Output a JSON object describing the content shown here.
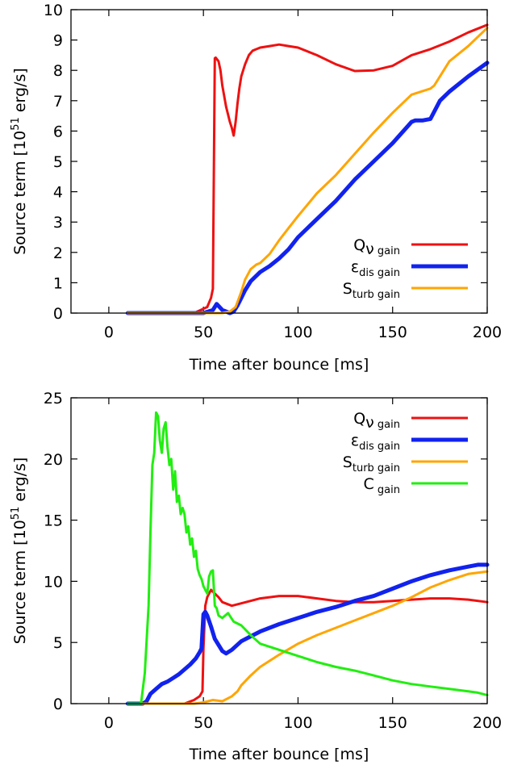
{
  "chart_data": [
    {
      "type": "line",
      "title": "",
      "xlabel": "Time after bounce [ms]",
      "ylabel_main": "Source term [10",
      "ylabel_sup": "51",
      "ylabel_tail": " erg/s]",
      "xlim": [
        -20,
        200
      ],
      "ylim": [
        0,
        10
      ],
      "xticks": [
        0,
        50,
        100,
        150,
        200
      ],
      "yticks": [
        0,
        1,
        2,
        3,
        4,
        5,
        6,
        7,
        8,
        9,
        10
      ],
      "grid": false,
      "legend_position": "bottom-right",
      "series": [
        {
          "name": "Q_ν gain",
          "legend_main": "Q",
          "legend_mid": "ν",
          "legend_sub": " gain",
          "color": "#ee1111",
          "width": 3,
          "x": [
            10,
            45,
            52,
            54,
            55,
            56,
            56.5,
            58,
            59,
            60,
            62,
            64,
            65,
            66,
            67,
            68,
            69,
            70,
            72,
            74,
            76,
            78,
            80,
            85,
            90,
            95,
            100,
            110,
            120,
            130,
            140,
            150,
            160,
            170,
            180,
            190,
            200
          ],
          "y": [
            0,
            0,
            0.2,
            0.5,
            0.8,
            8.4,
            8.42,
            8.3,
            8.0,
            7.5,
            6.8,
            6.3,
            6.1,
            5.85,
            6.3,
            6.9,
            7.4,
            7.8,
            8.2,
            8.5,
            8.65,
            8.7,
            8.75,
            8.8,
            8.85,
            8.8,
            8.75,
            8.5,
            8.2,
            7.98,
            8.0,
            8.15,
            8.5,
            8.7,
            8.95,
            9.25,
            9.5
          ]
        },
        {
          "name": "ε_dis gain",
          "legend_main": "ε",
          "legend_mid": "",
          "legend_sub": "dis gain",
          "color": "#1122ee",
          "width": 5,
          "x": [
            10,
            50,
            55,
            57,
            60,
            64,
            66,
            68,
            70,
            72,
            75,
            80,
            85,
            90,
            95,
            100,
            110,
            120,
            130,
            140,
            150,
            160,
            162,
            166,
            170,
            175,
            180,
            190,
            200
          ],
          "y": [
            0,
            0,
            0.1,
            0.3,
            0.1,
            0,
            0.05,
            0.25,
            0.5,
            0.75,
            1.05,
            1.35,
            1.55,
            1.8,
            2.1,
            2.5,
            3.1,
            3.7,
            4.4,
            5.0,
            5.6,
            6.3,
            6.35,
            6.35,
            6.4,
            7.0,
            7.3,
            7.8,
            8.25
          ]
        },
        {
          "name": "S_turb gain",
          "legend_main": "S",
          "legend_mid": "",
          "legend_sub": "turb gain",
          "color": "#ffa500",
          "width": 3,
          "x": [
            10,
            60,
            64,
            67,
            70,
            72,
            75,
            78,
            80,
            85,
            90,
            95,
            100,
            110,
            120,
            130,
            140,
            150,
            160,
            170,
            172,
            175,
            180,
            190,
            200
          ],
          "y": [
            0,
            0,
            0.05,
            0.2,
            0.7,
            1.1,
            1.45,
            1.6,
            1.65,
            1.95,
            2.4,
            2.8,
            3.2,
            3.95,
            4.55,
            5.25,
            5.95,
            6.6,
            7.2,
            7.4,
            7.5,
            7.8,
            8.3,
            8.8,
            9.4
          ]
        }
      ]
    },
    {
      "type": "line",
      "title": "",
      "xlabel": "Time after bounce [ms]",
      "ylabel_main": "Source term [10",
      "ylabel_sup": "51",
      "ylabel_tail": " erg/s]",
      "xlim": [
        -20,
        200
      ],
      "ylim": [
        0,
        25
      ],
      "xticks": [
        0,
        50,
        100,
        150,
        200
      ],
      "yticks": [
        0,
        5,
        10,
        15,
        20,
        25
      ],
      "grid": false,
      "legend_position": "top-right",
      "series": [
        {
          "name": "Q_ν gain",
          "legend_main": "Q",
          "legend_mid": "ν",
          "legend_sub": " gain",
          "color": "#ee1111",
          "width": 3,
          "x": [
            10,
            40,
            45,
            48,
            49.5,
            50,
            51,
            52,
            54,
            56,
            58,
            60,
            65,
            70,
            80,
            90,
            100,
            110,
            120,
            130,
            140,
            150,
            160,
            170,
            180,
            190,
            200
          ],
          "y": [
            0,
            0,
            0.3,
            0.6,
            1.0,
            4.5,
            8.0,
            8.7,
            9.3,
            9.0,
            8.7,
            8.3,
            8.0,
            8.2,
            8.6,
            8.8,
            8.8,
            8.6,
            8.4,
            8.3,
            8.3,
            8.4,
            8.5,
            8.6,
            8.6,
            8.5,
            8.3
          ]
        },
        {
          "name": "ε_dis gain",
          "legend_main": "ε",
          "legend_mid": "",
          "legend_sub": "dis gain",
          "color": "#1122ee",
          "width": 5,
          "x": [
            10,
            18,
            20,
            22,
            25,
            28,
            31,
            34,
            37,
            40,
            43,
            46,
            48,
            49,
            50,
            51,
            52,
            54,
            56,
            58,
            60,
            62,
            65,
            70,
            75,
            80,
            90,
            100,
            110,
            120,
            130,
            140,
            150,
            160,
            170,
            180,
            190,
            195,
            200
          ],
          "y": [
            0,
            0,
            0.2,
            0.8,
            1.2,
            1.6,
            1.8,
            2.1,
            2.4,
            2.8,
            3.2,
            3.7,
            4.2,
            4.5,
            7.3,
            7.5,
            7.2,
            6.3,
            5.3,
            4.8,
            4.3,
            4.1,
            4.4,
            5.1,
            5.5,
            5.9,
            6.5,
            7.0,
            7.5,
            7.9,
            8.4,
            8.8,
            9.4,
            10.0,
            10.5,
            10.9,
            11.2,
            11.35,
            11.35
          ]
        },
        {
          "name": "S_turb gain",
          "legend_main": "S",
          "legend_mid": "",
          "legend_sub": "turb gain",
          "color": "#ffa500",
          "width": 3,
          "x": [
            10,
            45,
            50,
            55,
            60,
            65,
            68,
            70,
            75,
            80,
            90,
            100,
            110,
            120,
            130,
            140,
            150,
            160,
            170,
            180,
            190,
            200
          ],
          "y": [
            0,
            0,
            0.1,
            0.3,
            0.2,
            0.6,
            1.0,
            1.5,
            2.3,
            3.0,
            4.0,
            4.9,
            5.6,
            6.2,
            6.8,
            7.4,
            8.0,
            8.7,
            9.5,
            10.1,
            10.6,
            10.8
          ]
        },
        {
          "name": "C gain",
          "legend_main": "C",
          "legend_mid": "",
          "legend_sub": " gain",
          "color": "#22ee11",
          "width": 3,
          "x": [
            10,
            17,
            19,
            21,
            22,
            23,
            24,
            25,
            26,
            27,
            28,
            29,
            30,
            31,
            32,
            33,
            34,
            35,
            36,
            37,
            38,
            39,
            40,
            41,
            42,
            43,
            44,
            45,
            46,
            47,
            48,
            49,
            50,
            51,
            52,
            53,
            54,
            55,
            56,
            57,
            58,
            60,
            63,
            66,
            70,
            75,
            80,
            90,
            100,
            110,
            120,
            130,
            140,
            150,
            160,
            170,
            180,
            190,
            195,
            200
          ],
          "y": [
            0,
            0,
            2.5,
            8,
            14,
            19.5,
            20.5,
            23.8,
            23.5,
            21.5,
            20.5,
            22.5,
            23.0,
            21.0,
            19.5,
            20.0,
            17.5,
            19.0,
            16.5,
            17.0,
            15.5,
            16.0,
            15.5,
            14.0,
            14.5,
            13.0,
            13.5,
            12.0,
            12.5,
            11.0,
            10.5,
            10.2,
            9.6,
            9.3,
            9.0,
            10.4,
            10.8,
            10.9,
            8.0,
            7.8,
            7.2,
            7.0,
            7.4,
            6.7,
            6.4,
            5.6,
            4.9,
            4.4,
            3.9,
            3.4,
            3.0,
            2.7,
            2.3,
            1.9,
            1.6,
            1.4,
            1.2,
            1.0,
            0.9,
            0.7
          ]
        }
      ]
    }
  ]
}
